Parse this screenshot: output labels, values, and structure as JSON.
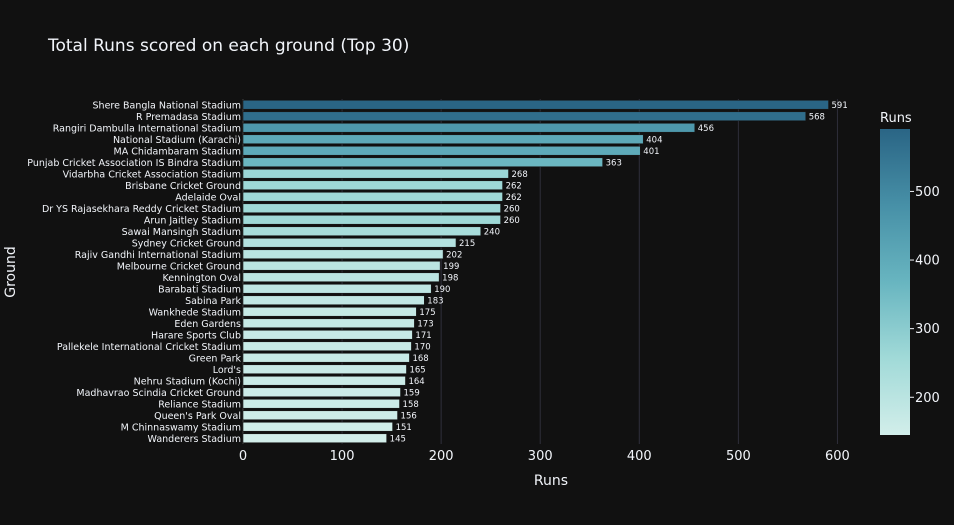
{
  "chart_data": {
    "type": "bar",
    "orientation": "horizontal",
    "title": "Total Runs scored on each ground (Top 30)",
    "xlabel": "Runs",
    "ylabel": "Ground",
    "xlim": [
      0,
      648
    ],
    "xticks": [
      0,
      100,
      200,
      300,
      400,
      500,
      600
    ],
    "grid": true,
    "categories": [
      "Shere Bangla National Stadium",
      "R Premadasa Stadium",
      "Rangiri Dambulla International Stadium",
      "National Stadium (Karachi)",
      "MA Chidambaram Stadium",
      "Punjab Cricket Association IS Bindra Stadium",
      "Vidarbha Cricket Association Stadium",
      "Brisbane Cricket Ground",
      "Adelaide Oval",
      "Dr YS Rajasekhara Reddy Cricket Stadium",
      "Arun Jaitley Stadium",
      "Sawai Mansingh Stadium",
      "Sydney Cricket Ground",
      "Rajiv Gandhi International Stadium",
      "Melbourne Cricket Ground",
      "Kennington Oval",
      "Barabati Stadium",
      "Sabina Park",
      "Wankhede Stadium",
      "Eden Gardens",
      "Harare Sports Club",
      "Pallekele International Cricket Stadium",
      "Green Park",
      "Lord's",
      "Nehru Stadium (Kochi)",
      "Madhavrao Scindia Cricket Ground",
      "Reliance Stadium",
      "Queen's Park Oval",
      "M Chinnaswamy Stadium",
      "Wanderers Stadium"
    ],
    "values": [
      591,
      568,
      456,
      404,
      401,
      363,
      268,
      262,
      262,
      260,
      260,
      240,
      215,
      202,
      199,
      198,
      190,
      183,
      175,
      173,
      171,
      170,
      168,
      165,
      164,
      159,
      158,
      156,
      151,
      145
    ],
    "colorbar": {
      "title": "Runs",
      "range": [
        145,
        591
      ],
      "ticks": [
        200,
        300,
        400,
        500
      ],
      "colors": [
        "#d2eeea",
        "#a1dad8",
        "#68b5c0",
        "#4790a7",
        "#2a6585"
      ]
    }
  }
}
